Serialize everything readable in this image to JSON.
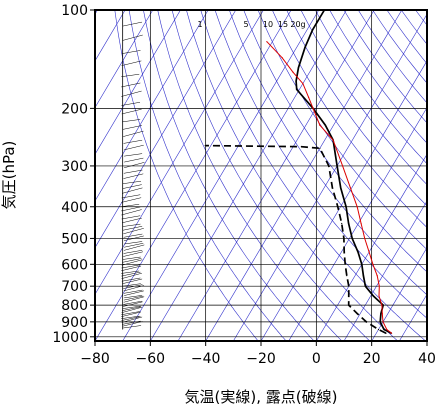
{
  "chart_data": {
    "type": "line",
    "title": "",
    "xlabel": "気温(実線), 露点(破線)",
    "ylabel": "気圧(hPa)",
    "x_range": [
      -80,
      40
    ],
    "y_range_hpa": [
      1030,
      100
    ],
    "y_scale": "log",
    "x_ticks": [
      "−80",
      "−60",
      "−40",
      "−20",
      "0",
      "20",
      "40"
    ],
    "x_tick_values": [
      -80,
      -60,
      -40,
      -20,
      0,
      20,
      40
    ],
    "y_ticks": [
      "100",
      "200",
      "300",
      "400",
      "500",
      "600",
      "700",
      "800",
      "900",
      "1000"
    ],
    "y_tick_values": [
      100,
      200,
      300,
      400,
      500,
      600,
      700,
      800,
      900,
      1000
    ],
    "mixing_ratio_labels": [
      "1",
      "5",
      "10",
      "15",
      "20g"
    ],
    "mixing_ratio_values": [
      1,
      5,
      10,
      15,
      20
    ],
    "grid": true,
    "skew_per_log10p": 70,
    "colors": {
      "temperature": "#000000",
      "dewpoint": "#000000",
      "parcel": "#dd0000",
      "background_lines": "#3333cc",
      "grid": "#000000"
    },
    "series": [
      {
        "style": "solid",
        "color": "#000000",
        "points": [
          [
            25.5,
            975
          ],
          [
            22,
            950
          ],
          [
            19,
            900
          ],
          [
            17.5,
            850
          ],
          [
            16.5,
            800
          ],
          [
            11,
            750
          ],
          [
            6,
            700
          ],
          [
            3,
            650
          ],
          [
            0,
            600
          ],
          [
            -4,
            550
          ],
          [
            -9,
            500
          ],
          [
            -13.5,
            450
          ],
          [
            -18,
            400
          ],
          [
            -24,
            350
          ],
          [
            -30,
            300
          ],
          [
            -37,
            250
          ],
          [
            -43,
            225
          ],
          [
            -51,
            200
          ],
          [
            -61,
            175
          ],
          [
            -63,
            165
          ],
          [
            -65,
            150
          ],
          [
            -67,
            130
          ],
          [
            -68,
            115
          ],
          [
            -68,
            100
          ]
        ]
      },
      {
        "style": "dashed",
        "color": "#000000",
        "points": [
          [
            23.5,
            975
          ],
          [
            20,
            950
          ],
          [
            14,
            900
          ],
          [
            9,
            850
          ],
          [
            4,
            800
          ],
          [
            0,
            700
          ],
          [
            -3,
            650
          ],
          [
            -6,
            600
          ],
          [
            -9,
            550
          ],
          [
            -12,
            500
          ],
          [
            -16,
            450
          ],
          [
            -21,
            400
          ],
          [
            -27,
            350
          ],
          [
            -33,
            300
          ],
          [
            -40,
            265
          ],
          [
            -47,
            262
          ],
          [
            -82,
            260
          ]
        ]
      },
      {
        "style": "solid",
        "color": "#dd0000",
        "points": [
          [
            25.5,
            975
          ],
          [
            23,
            950
          ],
          [
            20,
            900
          ],
          [
            18,
            850
          ],
          [
            16,
            800
          ],
          [
            13,
            750
          ],
          [
            11,
            700
          ],
          [
            8,
            650
          ],
          [
            4,
            600
          ],
          [
            0,
            550
          ],
          [
            -4.5,
            500
          ],
          [
            -9,
            450
          ],
          [
            -14,
            400
          ],
          [
            -20.5,
            350
          ],
          [
            -28,
            300
          ],
          [
            -37,
            250
          ],
          [
            -45,
            225
          ],
          [
            -51,
            200
          ],
          [
            -55,
            185
          ],
          [
            -60,
            168
          ],
          [
            -66,
            155
          ],
          [
            -73,
            140
          ],
          [
            -82,
            125
          ]
        ]
      }
    ]
  }
}
